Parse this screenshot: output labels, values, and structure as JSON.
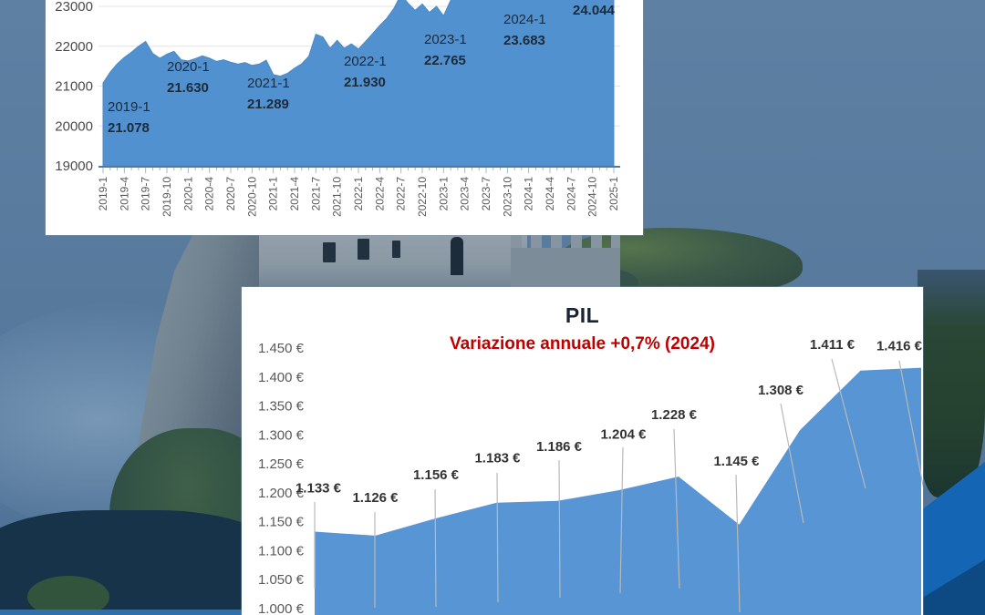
{
  "background": {
    "base_color": "#577a9d",
    "accent_blue": "#1565b5",
    "accent_navy": "#0d4a84"
  },
  "chart_data": [
    {
      "id": "occupati-mensile",
      "type": "area",
      "title": "",
      "legend": "none",
      "fill_color": "#5291d0",
      "line_color": "#4a8ac6",
      "axis_color": "#4e7ca8",
      "grid_color": "#e3e3e3",
      "tick_text_color": "#4a4a4a",
      "annotation_color": "#1c2b3a",
      "ylim": [
        19000,
        23160
      ],
      "yticks": [
        "23000",
        "22000",
        "21000",
        "20000",
        "19000"
      ],
      "ytick_values": [
        23000,
        22000,
        21000,
        20000,
        19000
      ],
      "x_tick_labels": [
        "2019-1",
        "2019-4",
        "2019-7",
        "2019-10",
        "2020-1",
        "2020-4",
        "2020-7",
        "2020-10",
        "2021-1",
        "2021-4",
        "2021-7",
        "2021-10",
        "2022-1",
        "2022-4",
        "2022-7",
        "2022-10",
        "2023-1",
        "2023-4",
        "2023-7",
        "2023-10",
        "2024-1",
        "2024-4",
        "2024-7",
        "2024-10",
        "2025-1"
      ],
      "values": [
        21078,
        21350,
        21560,
        21720,
        21850,
        22000,
        22120,
        21820,
        21700,
        21800,
        21870,
        21660,
        21630,
        21690,
        21760,
        21700,
        21620,
        21660,
        21600,
        21550,
        21590,
        21520,
        21550,
        21650,
        21289,
        21250,
        21320,
        21450,
        21560,
        21750,
        22300,
        22230,
        21950,
        22150,
        21950,
        22060,
        21930,
        22120,
        22320,
        22520,
        22700,
        22950,
        23300,
        23080,
        22900,
        23060,
        22850,
        23000,
        22765,
        23150,
        23400,
        23650,
        23550,
        23750,
        23800,
        23700,
        23850,
        23800,
        23900,
        23800,
        23683,
        23800,
        23900,
        23950,
        23900,
        24000,
        24050,
        24000,
        24100,
        24050,
        24100,
        24080,
        24044
      ],
      "annotations": [
        {
          "index": 0,
          "label": "2019-1",
          "value": "21.078"
        },
        {
          "index": 12,
          "label": "2020-1",
          "value": "21.630"
        },
        {
          "index": 24,
          "label": "2021-1",
          "value": "21.289"
        },
        {
          "index": 36,
          "label": "2022-1",
          "value": "21.930"
        },
        {
          "index": 48,
          "label": "2023-1",
          "value": "22.765"
        },
        {
          "index": 60,
          "label": "2024-1",
          "value": "23.683"
        },
        {
          "index": 72,
          "label": "",
          "value": "24.044"
        }
      ]
    },
    {
      "id": "pil-annuale",
      "type": "area",
      "title": "PIL",
      "subtitle": "Variazione annuale +0,7% (2024)",
      "subtitle_color": "#c00000",
      "fill_color": "#5795d5",
      "leader_color": "#b9b9b9",
      "tick_text_color": "#595959",
      "label_color": "#333333",
      "ylim": [
        1000,
        1450
      ],
      "yticks": [
        "1.450 €",
        "1.400 €",
        "1.350 €",
        "1.300 €",
        "1.250 €",
        "1.200 €",
        "1.150 €",
        "1.100 €",
        "1.050 €",
        "1.000 €"
      ],
      "ytick_values": [
        1450,
        1400,
        1350,
        1300,
        1250,
        1200,
        1150,
        1100,
        1050,
        1000
      ],
      "values": [
        1133,
        1126,
        1156,
        1183,
        1186,
        1204,
        1228,
        1145,
        1308,
        1411,
        1416
      ],
      "point_labels": [
        "1.133 €",
        "1.126 €",
        "1.156 €",
        "1.183 €",
        "1.186 €",
        "1.204 €",
        "1.228 €",
        "1.145 €",
        "1.308 €",
        "1.411 €",
        "1.416 €"
      ]
    }
  ]
}
